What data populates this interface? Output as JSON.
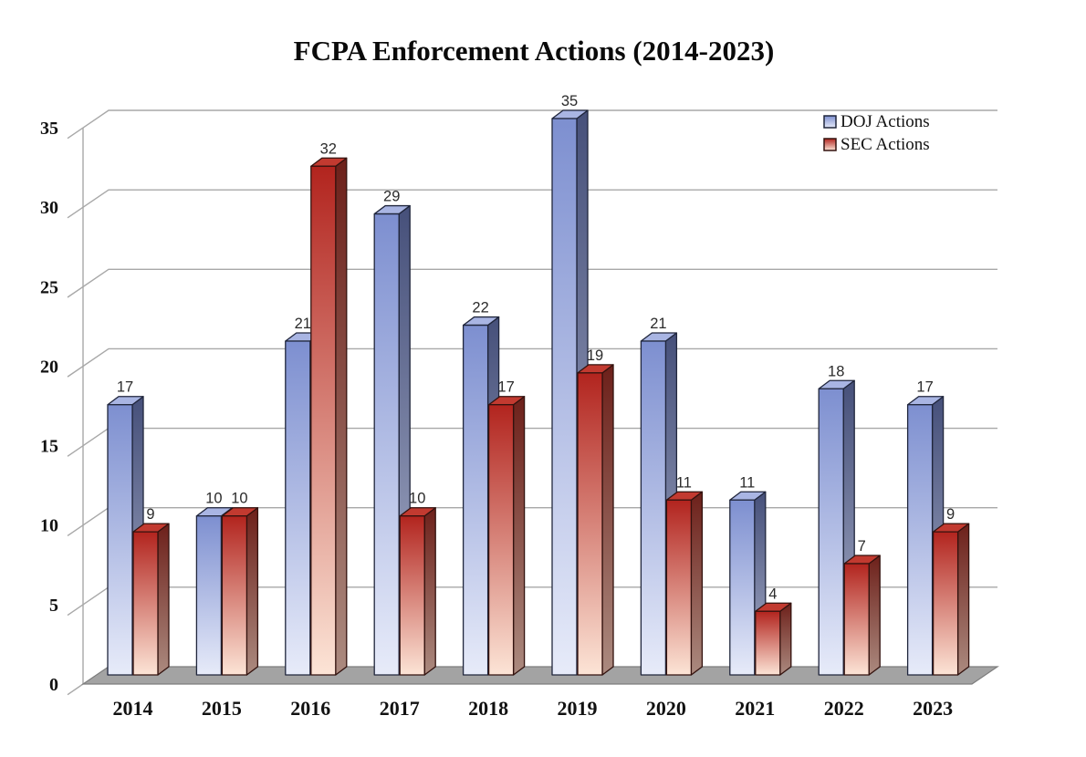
{
  "chart_data": {
    "type": "bar",
    "style": "3d-clustered-column",
    "title": "FCPA Enforcement Actions (2014-2023)",
    "categories": [
      "2014",
      "2015",
      "2016",
      "2017",
      "2018",
      "2019",
      "2020",
      "2021",
      "2022",
      "2023"
    ],
    "series": [
      {
        "name": "DOJ Actions",
        "values": [
          17,
          10,
          21,
          29,
          22,
          35,
          21,
          11,
          18,
          17
        ],
        "color_front_top": "#7d8fd0",
        "color_front_bottom": "#e7ebf9",
        "color_side_top": "#46507a",
        "color_side_bottom": "#a9b0ca",
        "color_top_face": "#a9b5e3",
        "color_outline": "#20263c"
      },
      {
        "name": "SEC Actions",
        "values": [
          9,
          10,
          32,
          10,
          17,
          19,
          11,
          4,
          7,
          9
        ],
        "color_front_top": "#b2241e",
        "color_front_bottom": "#fce4d6",
        "color_side_top": "#6d201a",
        "color_side_bottom": "#ab8a7f",
        "color_top_face": "#c23a30",
        "color_outline": "#33120e"
      }
    ],
    "xlabel": "",
    "ylabel": "",
    "ylim": [
      0,
      35
    ],
    "yticks": [
      0,
      5,
      10,
      15,
      20,
      25,
      30,
      35
    ],
    "grid": true,
    "legend_position": "top-right",
    "data_labels_shown": true,
    "colors": {
      "gridline": "#a8a8a8",
      "wall_edge": "#a8a8a8",
      "floor_fill": "#a3a3a3",
      "floor_edge": "#7d7d7d",
      "background": "#ffffff"
    }
  }
}
